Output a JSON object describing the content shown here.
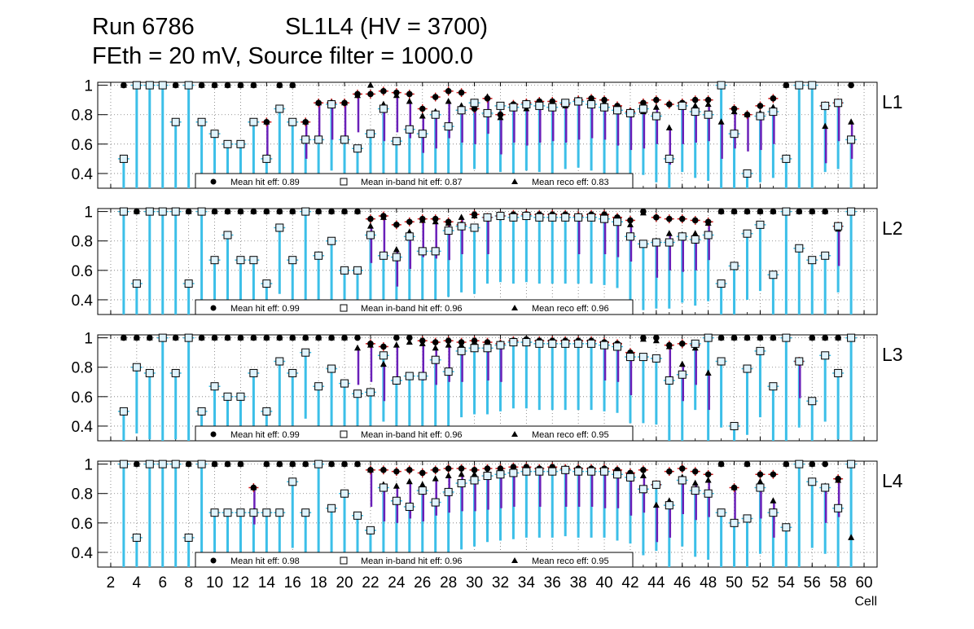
{
  "header": {
    "run": "Run 6786",
    "chamber": "SL1L4 (HV = 3700)",
    "settings": "FEth = 20 mV, Source filter = 1000.0"
  },
  "chart_data": {
    "type": "scatter",
    "xlabel": "Cell",
    "xlim": [
      1,
      61
    ],
    "ylim": [
      0.3,
      1.02
    ],
    "x_ticks": [
      2,
      4,
      6,
      8,
      10,
      12,
      14,
      16,
      18,
      20,
      22,
      24,
      26,
      28,
      30,
      32,
      34,
      36,
      38,
      40,
      42,
      44,
      46,
      48,
      50,
      52,
      54,
      56,
      58,
      60
    ],
    "y_ticks": [
      0.4,
      0.6,
      0.8,
      1
    ],
    "grid": true,
    "colors": {
      "band_error": "#3cbfe8",
      "hit_error": "#d01818",
      "reco_error": "#6a1fb8",
      "marker": "#000000",
      "inband_fill": "#dff2fb"
    },
    "panels": [
      {
        "layer": "L1",
        "legend": [
          "Mean hit  eff: 0.89",
          "Mean in-band hit eff: 0.87",
          "Mean reco eff: 0.83"
        ],
        "cells": [
          3,
          4,
          5,
          6,
          7,
          8,
          9,
          10,
          11,
          12,
          13,
          14,
          15,
          16,
          17,
          18,
          19,
          20,
          21,
          22,
          23,
          24,
          25,
          26,
          27,
          28,
          29,
          30,
          31,
          32,
          33,
          34,
          35,
          36,
          37,
          38,
          39,
          40,
          41,
          42,
          43,
          44,
          45,
          46,
          47,
          48,
          49,
          50,
          51,
          52,
          53,
          54,
          55,
          56,
          57,
          58,
          59
        ],
        "hit": [
          1,
          1,
          1,
          1,
          1,
          1,
          1,
          1,
          1,
          1,
          1,
          0.75,
          1,
          1,
          0.75,
          0.88,
          0.88,
          0.88,
          0.94,
          0.94,
          0.96,
          0.95,
          0.94,
          0.84,
          0.92,
          0.96,
          0.95,
          0.84,
          0.91,
          0.8,
          0.87,
          0.88,
          0.89,
          0.89,
          0.87,
          0.9,
          0.91,
          0.9,
          0.86,
          0.82,
          0.88,
          0.9,
          0.87,
          0.88,
          0.9,
          0.9,
          1,
          0.84,
          0.8,
          0.86,
          0.91,
          1,
          1,
          1,
          0.86,
          0.88,
          1
        ],
        "inband": [
          0.5,
          1,
          1,
          1,
          0.75,
          1,
          0.75,
          0.67,
          0.6,
          0.6,
          0.75,
          0.5,
          0.84,
          0.75,
          0.63,
          0.63,
          0.87,
          0.63,
          0.57,
          0.67,
          0.84,
          0.62,
          0.7,
          0.67,
          0.8,
          0.72,
          0.83,
          0.88,
          0.81,
          0.86,
          0.85,
          0.87,
          0.86,
          0.85,
          0.88,
          0.89,
          0.87,
          0.85,
          0.83,
          0.81,
          0.84,
          0.79,
          0.5,
          0.86,
          0.82,
          0.8,
          1,
          0.67,
          0.4,
          0.79,
          0.82,
          0.5,
          1,
          1,
          0.86,
          0.88,
          0.63
        ],
        "reco": [
          1,
          1,
          1,
          1,
          1,
          1,
          1,
          1,
          1,
          1,
          1,
          0.75,
          1,
          1,
          0.75,
          0.88,
          0.88,
          0.88,
          0.93,
          1,
          0.87,
          0.93,
          0.89,
          0.79,
          0.82,
          0.89,
          0.86,
          0.85,
          0.92,
          0.78,
          0.86,
          0.84,
          0.86,
          0.87,
          0.86,
          0.88,
          0.89,
          0.88,
          0.84,
          0.81,
          0.82,
          0.85,
          0.71,
          0.85,
          0.86,
          0.87,
          0.75,
          0.82,
          0.8,
          0.81,
          0.85,
          1,
          1,
          1,
          0.72,
          0.87,
          0.75
        ]
      },
      {
        "layer": "L2",
        "legend": [
          "Mean hit  eff: 0.99",
          "Mean in-band hit eff: 0.96",
          "Mean reco eff: 0.96"
        ],
        "cells": [
          3,
          4,
          5,
          6,
          7,
          8,
          9,
          10,
          11,
          12,
          13,
          14,
          15,
          16,
          17,
          18,
          19,
          20,
          21,
          22,
          23,
          24,
          25,
          26,
          27,
          28,
          29,
          30,
          31,
          32,
          33,
          34,
          35,
          36,
          37,
          38,
          39,
          40,
          41,
          42,
          43,
          44,
          45,
          46,
          47,
          48,
          49,
          50,
          51,
          52,
          53,
          54,
          55,
          56,
          57,
          58,
          59
        ],
        "hit": [
          1,
          1,
          1,
          1,
          1,
          1,
          1,
          1,
          1,
          1,
          1,
          1,
          1,
          1,
          1,
          1,
          1,
          1,
          1,
          0.95,
          0.97,
          0.91,
          0.93,
          0.95,
          0.95,
          0.93,
          0.91,
          0.98,
          0.96,
          0.97,
          0.98,
          0.98,
          0.98,
          0.98,
          0.98,
          0.97,
          0.98,
          0.98,
          0.96,
          0.94,
          1,
          0.96,
          0.95,
          0.95,
          0.94,
          0.93,
          1,
          1,
          1,
          1,
          1,
          1,
          1,
          1,
          1,
          0.9,
          1
        ],
        "inband": [
          1,
          0.51,
          1,
          1,
          1,
          0.51,
          1,
          0.67,
          0.84,
          0.67,
          0.67,
          0.51,
          0.89,
          0.67,
          1,
          0.7,
          0.8,
          0.6,
          0.6,
          0.84,
          0.7,
          0.69,
          0.83,
          0.73,
          0.73,
          0.87,
          0.9,
          0.89,
          0.96,
          0.97,
          0.96,
          0.97,
          0.96,
          0.96,
          0.96,
          0.96,
          0.96,
          0.95,
          0.93,
          0.83,
          0.78,
          0.79,
          0.79,
          0.83,
          0.81,
          0.84,
          0.51,
          0.63,
          0.85,
          0.91,
          0.57,
          1,
          0.75,
          0.67,
          0.7,
          0.9,
          1
        ],
        "reco": [
          1,
          1,
          1,
          1,
          1,
          1,
          1,
          1,
          1,
          1,
          1,
          1,
          1,
          1,
          1,
          1,
          1,
          1,
          1,
          0.9,
          0.96,
          0.74,
          0.86,
          0.94,
          0.93,
          0.92,
          0.96,
          0.97,
          0.96,
          0.97,
          0.97,
          0.97,
          0.97,
          0.97,
          0.97,
          0.96,
          0.97,
          0.96,
          0.94,
          0.91,
          0.99,
          0.8,
          0.85,
          0.84,
          0.85,
          0.92,
          1,
          1,
          1,
          1,
          1,
          1,
          1,
          1,
          1,
          0.88,
          1
        ]
      },
      {
        "layer": "L3",
        "legend": [
          "Mean hit  eff: 0.99",
          "Mean in-band hit eff: 0.96",
          "Mean reco eff: 0.95"
        ],
        "cells": [
          3,
          4,
          5,
          6,
          7,
          8,
          9,
          10,
          11,
          12,
          13,
          14,
          15,
          16,
          17,
          18,
          19,
          20,
          21,
          22,
          23,
          24,
          25,
          26,
          27,
          28,
          29,
          30,
          31,
          32,
          33,
          34,
          35,
          36,
          37,
          38,
          39,
          40,
          41,
          42,
          43,
          44,
          45,
          46,
          47,
          48,
          49,
          50,
          51,
          52,
          53,
          54,
          55,
          56,
          57,
          58,
          59
        ],
        "hit": [
          1,
          1,
          1,
          1,
          1,
          1,
          1,
          1,
          1,
          1,
          1,
          1,
          1,
          1,
          1,
          1,
          1,
          1,
          1,
          0.96,
          0.94,
          1,
          1,
          0.98,
          0.97,
          0.98,
          0.97,
          0.98,
          0.97,
          0.96,
          0.98,
          0.99,
          0.98,
          0.98,
          0.98,
          0.98,
          0.98,
          0.97,
          0.96,
          0.9,
          1,
          1,
          0.95,
          0.96,
          0.95,
          1,
          1,
          1,
          1,
          1,
          1,
          1,
          0.84,
          1,
          1,
          1,
          1
        ],
        "inband": [
          0.5,
          0.8,
          0.76,
          1,
          0.76,
          1,
          0.5,
          0.67,
          0.6,
          0.6,
          0.76,
          0.5,
          0.84,
          0.76,
          0.9,
          0.67,
          0.79,
          0.69,
          0.62,
          0.63,
          0.88,
          0.71,
          0.74,
          0.74,
          0.85,
          0.77,
          0.91,
          0.93,
          0.93,
          0.95,
          0.97,
          0.97,
          0.96,
          0.96,
          0.96,
          0.96,
          0.96,
          0.95,
          0.94,
          0.87,
          0.87,
          0.86,
          0.71,
          0.75,
          0.96,
          1,
          0.84,
          0.4,
          0.79,
          0.91,
          0.67,
          1,
          0.84,
          0.57,
          0.88,
          0.76,
          1
        ],
        "reco": [
          1,
          1,
          1,
          1,
          1,
          1,
          1,
          1,
          1,
          1,
          1,
          1,
          1,
          1,
          1,
          1,
          1,
          1,
          0.93,
          0.95,
          0.82,
          0.95,
          0.97,
          0.96,
          0.93,
          0.95,
          0.95,
          0.97,
          0.96,
          0.95,
          0.97,
          0.98,
          0.97,
          0.97,
          0.97,
          0.97,
          0.97,
          0.96,
          0.95,
          0.86,
          0.99,
          0.98,
          0.94,
          0.82,
          0.93,
          0.76,
          1,
          1,
          1,
          1,
          1,
          1,
          0.84,
          1,
          1,
          1,
          1
        ]
      },
      {
        "layer": "L4",
        "legend": [
          "Mean hit  eff: 0.98",
          "Mean in-band hit eff: 0.96",
          "Mean reco eff: 0.95"
        ],
        "cells": [
          3,
          4,
          5,
          6,
          7,
          8,
          9,
          10,
          11,
          12,
          13,
          14,
          15,
          16,
          17,
          18,
          19,
          20,
          21,
          22,
          23,
          24,
          25,
          26,
          27,
          28,
          29,
          30,
          31,
          32,
          33,
          34,
          35,
          36,
          37,
          38,
          39,
          40,
          41,
          42,
          43,
          44,
          45,
          46,
          47,
          48,
          49,
          50,
          51,
          52,
          53,
          54,
          55,
          56,
          57,
          58,
          59
        ],
        "hit": [
          1,
          1,
          1,
          1,
          1,
          1,
          1,
          1,
          1,
          1,
          0.84,
          1,
          1,
          1,
          1,
          1,
          1,
          1,
          1,
          0.96,
          0.96,
          0.95,
          0.96,
          0.94,
          0.96,
          0.97,
          0.97,
          0.96,
          0.97,
          0.97,
          0.98,
          0.98,
          0.97,
          0.98,
          0.97,
          0.97,
          0.97,
          0.97,
          0.96,
          0.94,
          0.96,
          0.86,
          0.95,
          0.97,
          0.95,
          0.93,
          1,
          0.84,
          1,
          0.93,
          0.93,
          1,
          1,
          1,
          1,
          0.9,
          1
        ],
        "inband": [
          1,
          0.5,
          1,
          1,
          1,
          0.5,
          1,
          0.67,
          0.67,
          0.67,
          0.67,
          0.67,
          0.67,
          0.88,
          0.67,
          1,
          0.7,
          0.8,
          0.65,
          0.55,
          0.84,
          0.75,
          0.71,
          0.82,
          0.74,
          0.81,
          0.87,
          0.89,
          0.92,
          0.93,
          0.94,
          0.95,
          0.95,
          0.95,
          0.96,
          0.95,
          0.95,
          0.95,
          0.93,
          0.91,
          0.83,
          0.86,
          0.72,
          0.89,
          0.82,
          0.8,
          0.67,
          0.6,
          0.63,
          0.84,
          0.67,
          0.57,
          1,
          0.88,
          0.84,
          0.7,
          1
        ],
        "reco": [
          1,
          1,
          1,
          1,
          1,
          1,
          1,
          1,
          1,
          1,
          0.84,
          1,
          1,
          1,
          1,
          1,
          1,
          1,
          1,
          0.96,
          0.86,
          0.85,
          0.88,
          0.86,
          0.9,
          0.92,
          0.93,
          0.93,
          0.94,
          0.95,
          0.96,
          0.97,
          0.96,
          0.97,
          0.96,
          0.96,
          0.96,
          0.95,
          0.95,
          0.9,
          0.92,
          0.72,
          0.75,
          0.91,
          0.87,
          0.89,
          1,
          0.84,
          1,
          0.88,
          0.75,
          1,
          1,
          1,
          0.85,
          0.89,
          0.5
        ]
      }
    ]
  }
}
